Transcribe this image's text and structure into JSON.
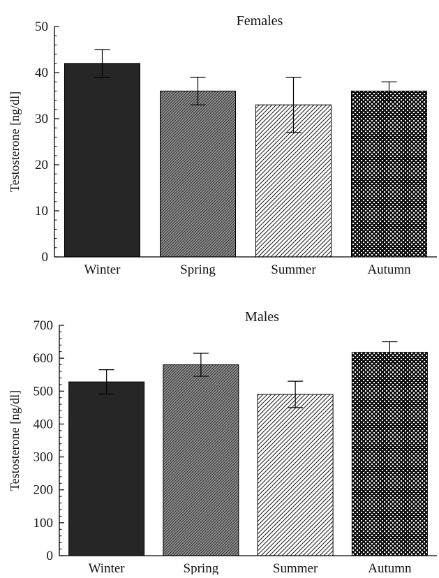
{
  "chart_data": [
    {
      "type": "bar",
      "title": "Females",
      "xlabel": "",
      "ylabel": "Testosterone [ng/dl]",
      "ylim": [
        0,
        50
      ],
      "yticks": [
        0,
        10,
        20,
        30,
        40,
        50
      ],
      "categories": [
        "Winter",
        "Spring",
        "Summer",
        "Autumn"
      ],
      "values": [
        42,
        36,
        33,
        36
      ],
      "error": [
        3,
        3,
        6,
        2
      ],
      "fill_patterns": [
        "solid-dark",
        "fine-crosshatch",
        "diagonal-lines",
        "checkerboard"
      ],
      "grid": false,
      "legend": "none"
    },
    {
      "type": "bar",
      "title": "Males",
      "xlabel": "",
      "ylabel": "Testosterone [ng/dl]",
      "ylim": [
        0,
        700
      ],
      "yticks": [
        0,
        100,
        200,
        300,
        400,
        500,
        600,
        700
      ],
      "categories": [
        "Winter",
        "Spring",
        "Summer",
        "Autumn"
      ],
      "values": [
        528,
        580,
        490,
        618
      ],
      "error": [
        37,
        35,
        40,
        32
      ],
      "fill_patterns": [
        "solid-dark",
        "fine-crosshatch",
        "diagonal-lines",
        "checkerboard"
      ],
      "grid": false,
      "legend": "none"
    }
  ],
  "colors": {
    "bar_dark": "#262626",
    "axis": "#000000",
    "pattern_ink": "#1a1a1a"
  }
}
